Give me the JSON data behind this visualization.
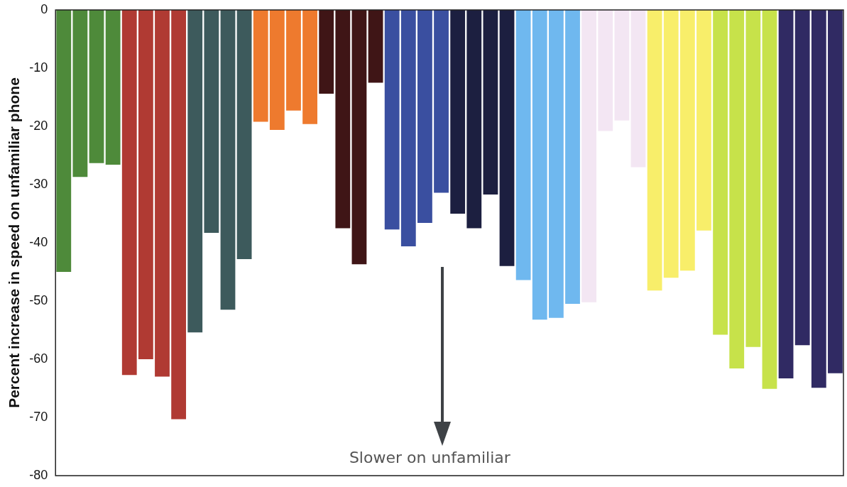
{
  "chart_data": {
    "type": "bar",
    "ylabel": "Percent increase in speed on unfamiliar phone",
    "categories": [
      null,
      null,
      null,
      null,
      null,
      null,
      null,
      null,
      null,
      null,
      null,
      null,
      null,
      null,
      null,
      null,
      null,
      null,
      null,
      null,
      null,
      null,
      null,
      null,
      null,
      null,
      null,
      null,
      null,
      null,
      null,
      null,
      null,
      null,
      null,
      null,
      null,
      null,
      null,
      null,
      null,
      null,
      null,
      null,
      null,
      null,
      null,
      null
    ],
    "values": [
      -45,
      -28.7,
      -26.3,
      -26.6,
      -62.7,
      -60,
      -63,
      -70.3,
      -55.4,
      -38.3,
      -51.5,
      -42.8,
      -19.2,
      -20.6,
      -17.3,
      -19.6,
      -14.4,
      -37.5,
      -43.7,
      -12.5,
      -37.7,
      -40.6,
      -36.6,
      -31.4,
      -35,
      -37.5,
      -31.7,
      -44,
      -46.4,
      -53.2,
      -52.9,
      -50.5,
      -50.2,
      -20.8,
      -19,
      -27,
      -48.2,
      -46,
      -44.8,
      -37.9,
      -55.8,
      -61.6,
      -57.9,
      -65.1,
      -63.3,
      -57.6,
      -64.9,
      -62.4
    ],
    "colors": [
      "#4e8a3a",
      "#4e8a3a",
      "#4e8a3a",
      "#4e8a3a",
      "#b03a33",
      "#b03a33",
      "#b03a33",
      "#b03a33",
      "#3d5a5c",
      "#3d5a5c",
      "#3d5a5c",
      "#3d5a5c",
      "#ee7a2e",
      "#ee7a2e",
      "#ee7a2e",
      "#ee7a2e",
      "#3f1516",
      "#3f1516",
      "#3f1516",
      "#3f1516",
      "#3a4fa0",
      "#3a4fa0",
      "#3a4fa0",
      "#3a4fa0",
      "#1c1f40",
      "#1c1f40",
      "#1c1f40",
      "#1c1f40",
      "#6fb8ef",
      "#6fb8ef",
      "#6fb8ef",
      "#6fb8ef",
      "#f3e6f3",
      "#f3e6f3",
      "#f3e6f3",
      "#f3e6f3",
      "#f8ee6a",
      "#f8ee6a",
      "#f8ee6a",
      "#f8ee6a",
      "#c7e24a",
      "#c7e24a",
      "#c7e24a",
      "#c7e24a",
      "#302a63",
      "#302a63",
      "#302a63",
      "#302a63"
    ],
    "ylim": [
      -80,
      0
    ],
    "yticks": [
      0,
      -10,
      -20,
      -30,
      -40,
      -50,
      -60,
      -70,
      -80
    ],
    "annotations": [
      "Slower on unfamiliar"
    ]
  }
}
